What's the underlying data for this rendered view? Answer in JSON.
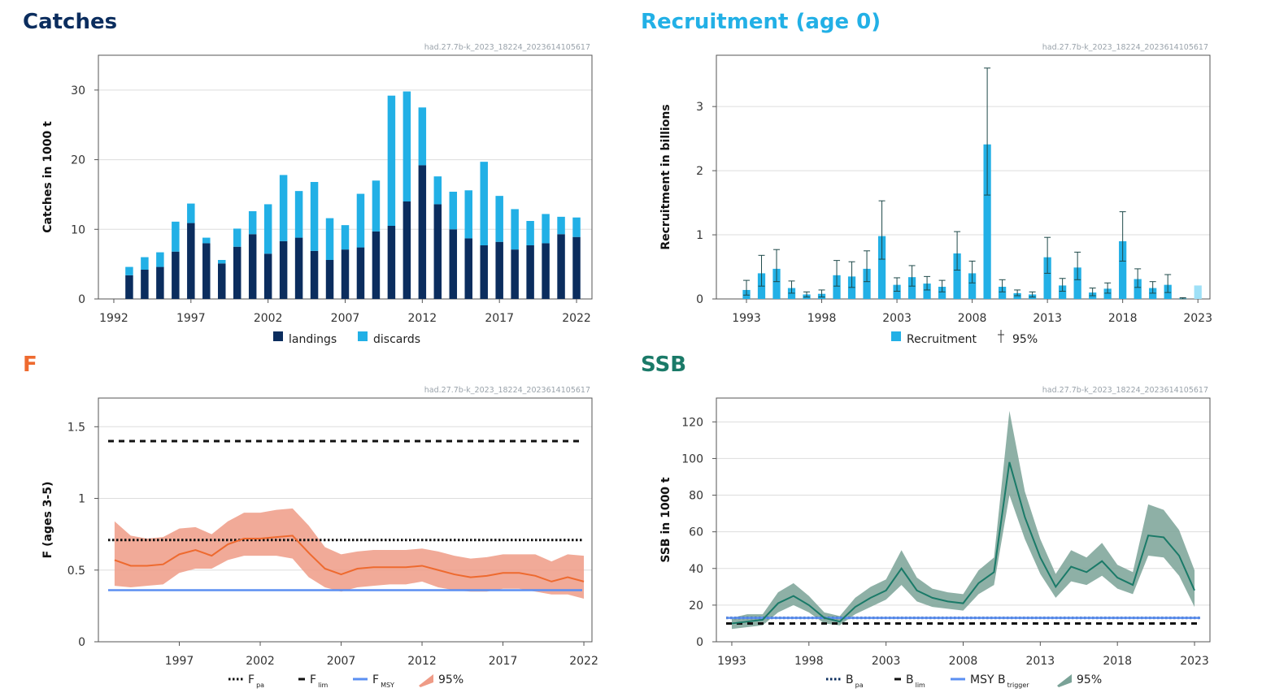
{
  "stamp": "had.27.7b-k_2023_18224_2023614105617",
  "colors": {
    "navy": "#0b2d5e",
    "cyan": "#22b0e6",
    "cyan_light": "#9ee0f7",
    "orange": "#ee6a2f",
    "orange_band": "#ef9b86",
    "teal": "#1a7a68",
    "teal_band": "#7aa297",
    "blue_line": "#5b8ff2",
    "grid": "#dddddd",
    "frame": "#555555"
  },
  "chart_data": [
    {
      "id": "catches",
      "type": "bar",
      "title": "Catches",
      "ylabel": "Catches in 1000 t",
      "xlim": [
        1991,
        2023
      ],
      "ylim": [
        0,
        35
      ],
      "xticks": [
        1992,
        1997,
        2002,
        2007,
        2012,
        2017,
        2022
      ],
      "yticks": [
        0,
        10,
        20,
        30
      ],
      "x": [
        1993,
        1994,
        1995,
        1996,
        1997,
        1998,
        1999,
        2000,
        2001,
        2002,
        2003,
        2004,
        2005,
        2006,
        2007,
        2008,
        2009,
        2010,
        2011,
        2012,
        2013,
        2014,
        2015,
        2016,
        2017,
        2018,
        2019,
        2020,
        2021,
        2022
      ],
      "series": [
        {
          "name": "landings",
          "values": [
            3.4,
            4.2,
            4.6,
            6.8,
            10.9,
            8.0,
            5.1,
            7.5,
            9.3,
            6.5,
            8.3,
            8.8,
            6.9,
            5.6,
            7.1,
            7.4,
            9.7,
            10.5,
            14.0,
            19.2,
            13.6,
            10.0,
            8.7,
            7.7,
            8.2,
            7.1,
            7.7,
            8.0,
            9.3,
            8.9
          ]
        },
        {
          "name": "discards",
          "values": [
            1.2,
            1.8,
            2.1,
            4.3,
            2.8,
            0.8,
            0.5,
            2.6,
            3.3,
            7.1,
            9.5,
            6.7,
            9.9,
            6.0,
            3.5,
            7.7,
            7.3,
            18.7,
            15.8,
            8.3,
            4.0,
            5.4,
            6.9,
            12.0,
            6.6,
            5.8,
            3.5,
            4.2,
            2.5,
            2.8
          ]
        }
      ],
      "legend": [
        "landings",
        "discards"
      ]
    },
    {
      "id": "recruitment",
      "type": "bar",
      "title": "Recruitment (age 0)",
      "ylabel": "Recruitment in billions",
      "xlim": [
        1991,
        2023.8
      ],
      "ylim": [
        0,
        3.8
      ],
      "xticks": [
        1993,
        1998,
        2003,
        2008,
        2013,
        2018,
        2023
      ],
      "yticks": [
        0,
        1,
        2,
        3
      ],
      "x": [
        1993,
        1994,
        1995,
        1996,
        1997,
        1998,
        1999,
        2000,
        2001,
        2002,
        2003,
        2004,
        2005,
        2006,
        2007,
        2008,
        2009,
        2010,
        2011,
        2012,
        2013,
        2014,
        2015,
        2016,
        2017,
        2018,
        2019,
        2020,
        2021,
        2022,
        2023
      ],
      "values": [
        0.14,
        0.4,
        0.47,
        0.17,
        0.07,
        0.08,
        0.37,
        0.35,
        0.47,
        0.98,
        0.22,
        0.34,
        0.24,
        0.19,
        0.71,
        0.4,
        2.41,
        0.19,
        0.09,
        0.07,
        0.65,
        0.21,
        0.49,
        0.1,
        0.16,
        0.9,
        0.31,
        0.17,
        0.22,
        0.01,
        0.21
      ],
      "low": [
        0.06,
        0.2,
        0.27,
        0.09,
        0.03,
        0.03,
        0.2,
        0.18,
        0.27,
        0.62,
        0.12,
        0.2,
        0.14,
        0.11,
        0.45,
        0.25,
        1.62,
        0.11,
        0.05,
        0.03,
        0.4,
        0.12,
        0.3,
        0.05,
        0.09,
        0.59,
        0.18,
        0.09,
        0.1,
        0.0,
        null
      ],
      "high": [
        0.29,
        0.68,
        0.77,
        0.28,
        0.11,
        0.14,
        0.6,
        0.58,
        0.75,
        1.53,
        0.33,
        0.52,
        0.35,
        0.29,
        1.05,
        0.59,
        3.6,
        0.3,
        0.14,
        0.11,
        0.96,
        0.32,
        0.73,
        0.17,
        0.25,
        1.36,
        0.47,
        0.27,
        0.38,
        0.02,
        null
      ],
      "highlight_last": true,
      "legend": [
        "Recruitment",
        "95%"
      ]
    },
    {
      "id": "f",
      "type": "line",
      "title": "F",
      "ylabel": "F (ages 3-5)",
      "xlim": [
        1992,
        2022.5
      ],
      "ylim": [
        0,
        1.7
      ],
      "xticks": [
        1997,
        2002,
        2007,
        2012,
        2017,
        2022
      ],
      "yticks": [
        0,
        0.5,
        1,
        1.5
      ],
      "ytick_labels": [
        "0",
        "0.5",
        "1",
        "1.5"
      ],
      "x": [
        1993,
        1994,
        1995,
        1996,
        1997,
        1998,
        1999,
        2000,
        2001,
        2002,
        2003,
        2004,
        2005,
        2006,
        2007,
        2008,
        2009,
        2010,
        2011,
        2012,
        2013,
        2014,
        2015,
        2016,
        2017,
        2018,
        2019,
        2020,
        2021,
        2022
      ],
      "values": [
        0.57,
        0.53,
        0.53,
        0.54,
        0.61,
        0.64,
        0.6,
        0.68,
        0.72,
        0.72,
        0.73,
        0.74,
        0.62,
        0.51,
        0.47,
        0.51,
        0.52,
        0.52,
        0.52,
        0.53,
        0.5,
        0.47,
        0.45,
        0.46,
        0.48,
        0.48,
        0.46,
        0.42,
        0.45,
        0.42
      ],
      "low": [
        0.39,
        0.38,
        0.39,
        0.4,
        0.48,
        0.51,
        0.51,
        0.57,
        0.6,
        0.6,
        0.6,
        0.58,
        0.45,
        0.38,
        0.35,
        0.38,
        0.39,
        0.4,
        0.4,
        0.42,
        0.38,
        0.36,
        0.35,
        0.35,
        0.37,
        0.37,
        0.35,
        0.33,
        0.33,
        0.3
      ],
      "high": [
        0.84,
        0.74,
        0.72,
        0.73,
        0.79,
        0.8,
        0.75,
        0.84,
        0.9,
        0.9,
        0.92,
        0.93,
        0.81,
        0.66,
        0.61,
        0.63,
        0.64,
        0.64,
        0.64,
        0.65,
        0.63,
        0.6,
        0.58,
        0.59,
        0.61,
        0.61,
        0.61,
        0.56,
        0.61,
        0.6
      ],
      "refs": [
        {
          "name": "Fpa",
          "value": 0.71,
          "style": "dotted",
          "color": "#111111"
        },
        {
          "name": "Flim",
          "value": 1.4,
          "style": "dashed",
          "color": "#111111"
        },
        {
          "name": "FMSY",
          "value": 0.36,
          "style": "solid",
          "color": "#5b8ff2"
        }
      ],
      "legend": [
        {
          "main": "F",
          "sub": "pa"
        },
        {
          "main": "F",
          "sub": "lim"
        },
        {
          "main": "F",
          "sub": "MSY"
        },
        {
          "main": "95%",
          "sub": ""
        }
      ]
    },
    {
      "id": "ssb",
      "type": "line",
      "title": "SSB",
      "ylabel": "SSB in 1000 t",
      "xlim": [
        1992,
        2024
      ],
      "ylim": [
        0,
        133
      ],
      "xticks": [
        1993,
        1998,
        2003,
        2008,
        2013,
        2018,
        2023
      ],
      "yticks": [
        0,
        20,
        40,
        60,
        80,
        100,
        120
      ],
      "x": [
        1993,
        1994,
        1995,
        1996,
        1997,
        1998,
        1999,
        2000,
        2001,
        2002,
        2003,
        2004,
        2005,
        2006,
        2007,
        2008,
        2009,
        2010,
        2011,
        2012,
        2013,
        2014,
        2015,
        2016,
        2017,
        2018,
        2019,
        2020,
        2021,
        2022,
        2023
      ],
      "values": [
        10,
        11,
        12,
        21,
        25,
        20,
        13,
        11,
        19,
        24,
        28,
        40,
        28,
        24,
        22,
        21,
        32,
        38,
        98,
        68,
        46,
        30,
        41,
        38,
        44,
        35,
        31,
        58,
        57,
        47,
        28
      ],
      "low": [
        7,
        8,
        9,
        16,
        20,
        16,
        10,
        9,
        15,
        19,
        23,
        31,
        22,
        19,
        18,
        17,
        26,
        31,
        80,
        56,
        37,
        24,
        33,
        31,
        36,
        29,
        26,
        47,
        46,
        36,
        19
      ],
      "high": [
        13,
        15,
        15,
        27,
        32,
        25,
        16,
        14,
        24,
        30,
        34,
        50,
        35,
        29,
        27,
        26,
        39,
        46,
        126,
        82,
        56,
        37,
        50,
        46,
        54,
        42,
        38,
        75,
        72,
        61,
        39
      ],
      "refs": [
        {
          "name": "Bpa",
          "value": 13,
          "style": "dotted",
          "color": "#0b2d5e"
        },
        {
          "name": "Blim",
          "value": 10,
          "style": "dashed",
          "color": "#111111"
        },
        {
          "name": "MSY Btrigger",
          "value": 13,
          "style": "solid",
          "color": "#5b8ff2"
        }
      ],
      "legend": [
        {
          "main": "B",
          "sub": "pa"
        },
        {
          "main": "B",
          "sub": "lim"
        },
        {
          "main": "MSY B",
          "sub": "trigger"
        },
        {
          "main": "95%",
          "sub": ""
        }
      ]
    }
  ]
}
